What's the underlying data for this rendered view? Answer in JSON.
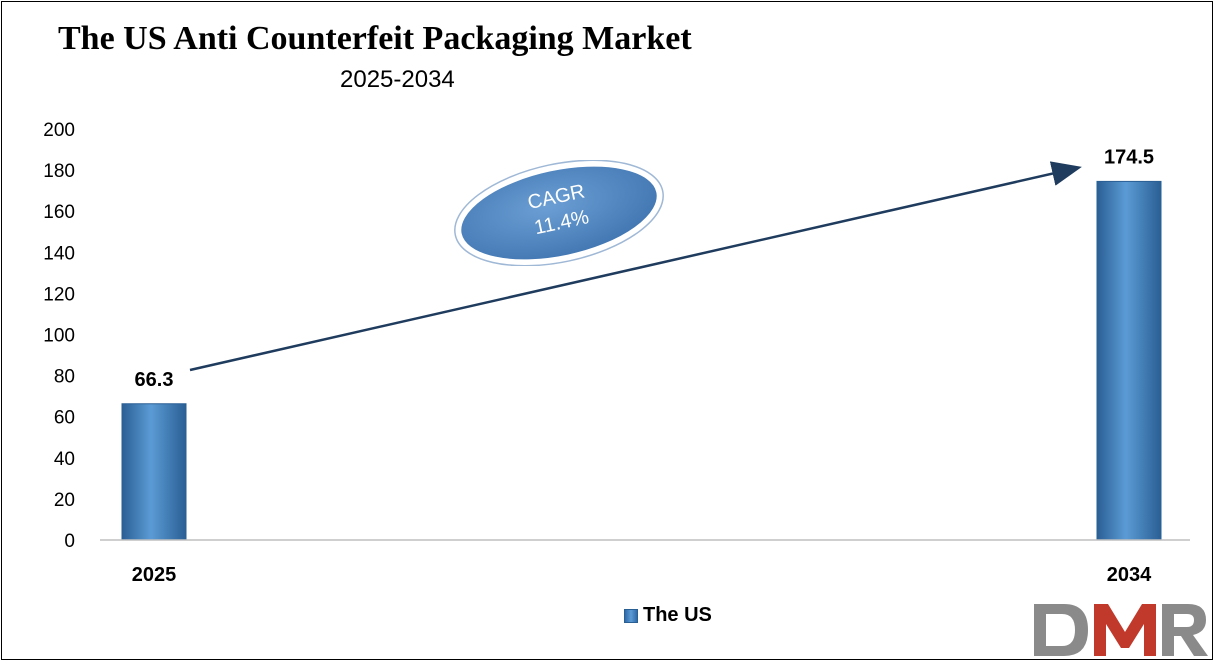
{
  "chart_data": {
    "type": "bar",
    "title": "The US Anti Counterfeit Packaging Market",
    "subtitle": "2025-2034",
    "categories": [
      "2025",
      "2034"
    ],
    "series": [
      {
        "name": "The US",
        "values": [
          66.3,
          174.5
        ],
        "data_labels": [
          "66.3",
          "174.5"
        ]
      }
    ],
    "ylim": [
      0,
      200
    ],
    "yticks": [
      "0",
      "20",
      "40",
      "60",
      "80",
      "100",
      "120",
      "140",
      "160",
      "180",
      "200"
    ],
    "grid": false,
    "legend": "bottom-center",
    "annotation": {
      "line1": "CAGR",
      "line2": "11.4%"
    },
    "colors": {
      "bar": "#4a86c5",
      "bar_dark": "#2a5f94",
      "arrow": "#1f3c5e",
      "ellipse": "#5b8fc7"
    }
  },
  "brand": {
    "logo_text": "DMR",
    "logo_icon": "dmr-logo-icon"
  }
}
